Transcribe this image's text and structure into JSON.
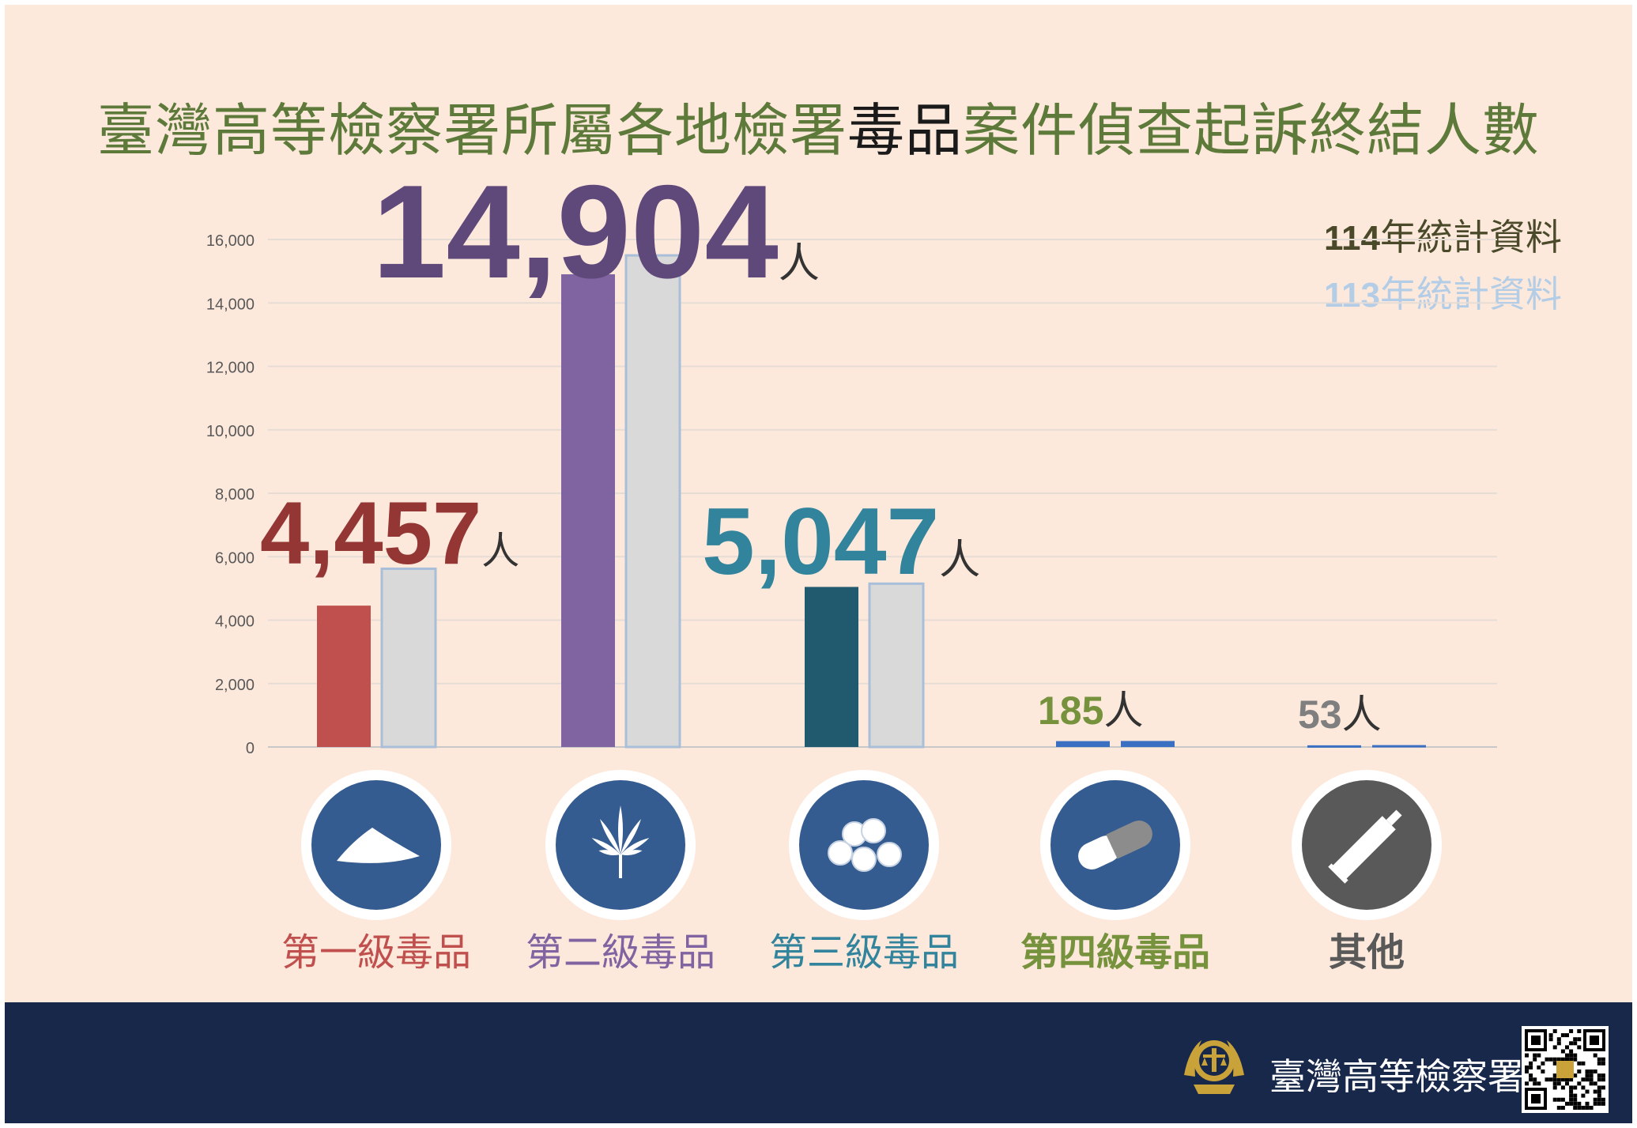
{
  "title": {
    "part1": "臺灣高等檢察署所屬各地檢署",
    "highlight": "毒品",
    "part2": "案件偵查起訴終結人數"
  },
  "legend": [
    {
      "year": "114",
      "text": "年統計資料",
      "color": "#4a4a2a"
    },
    {
      "year": "113",
      "text": "年統計資料",
      "color": "#b4cde6"
    }
  ],
  "footer": {
    "org_name": "臺灣高等檢察署"
  },
  "colors": {
    "background": "#fde9dc",
    "footer": "#18284a",
    "bar_113": "#d9d9d9",
    "circle": "#345c90",
    "circle_other": "#595959"
  },
  "chart_data": {
    "type": "bar",
    "ylim": [
      0,
      16000
    ],
    "yticks": [
      0,
      2000,
      4000,
      6000,
      8000,
      10000,
      12000,
      14000,
      16000
    ],
    "ytick_labels": [
      "0",
      "2,000",
      "4,000",
      "6,000",
      "8,000",
      "10,000",
      "12,000",
      "14,000",
      "16,000"
    ],
    "grid": true,
    "categories": [
      "第一級毒品",
      "第二級毒品",
      "第三級毒品",
      "第四級毒品",
      "其他"
    ],
    "series": [
      {
        "name": "114年統計資料",
        "values": [
          4457,
          14904,
          5047,
          185,
          53
        ],
        "colors": [
          "#c0504d",
          "#8064a2",
          "#215a6e",
          "#3a6fc2",
          "#3a6fc2"
        ]
      },
      {
        "name": "113年統計資料",
        "values": [
          5620,
          15500,
          5150,
          190,
          60
        ],
        "colors": [
          "#d9d9d9",
          "#d9d9d9",
          "#d9d9d9",
          "#3a6fc2",
          "#3a6fc2"
        ]
      }
    ],
    "annotations": [
      {
        "value_text": "4,457",
        "unit": "人",
        "color": "#943634",
        "size": "large"
      },
      {
        "value_text": "14,904",
        "unit": "人",
        "color": "#5f497a",
        "size": "xlarge"
      },
      {
        "value_text": "5,047",
        "unit": "人",
        "color": "#31849b",
        "size": "large"
      },
      {
        "value_text": "185",
        "unit": "人",
        "color": "#76923c",
        "size": "small"
      },
      {
        "value_text": "53",
        "unit": "人",
        "color": "#7f7f7f",
        "size": "small"
      }
    ],
    "category_colors": [
      "#c0504d",
      "#8064a2",
      "#31849b",
      "#76923c",
      "#595959"
    ],
    "category_icons": [
      "powder-icon",
      "cannabis-leaf-icon",
      "pills-icon",
      "capsule-icon",
      "tube-icon"
    ]
  }
}
